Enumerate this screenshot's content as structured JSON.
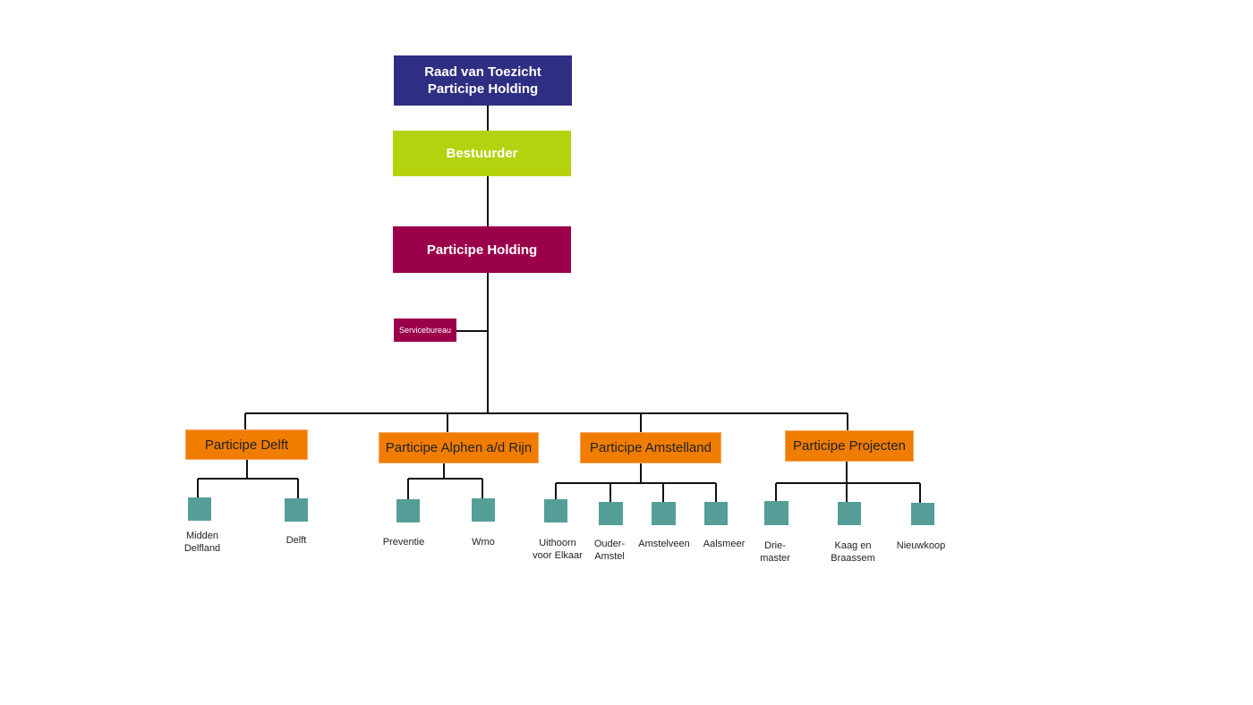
{
  "colors": {
    "board": "#2e2e82",
    "director": "#b5d20f",
    "holding": "#9b004a",
    "subsidiary": "#f07c00",
    "unit": "#559e98"
  },
  "board": {
    "line1": "Raad van Toezicht",
    "line2": "Participe Holding"
  },
  "director": "Bestuurder",
  "holding": "Participe Holding",
  "service": "Servicebureau",
  "subsidiaries": [
    {
      "name": "Participe Delft",
      "units": [
        "Midden\nDelfland",
        "Delft"
      ]
    },
    {
      "name": "Participe Alphen a/d Rijn",
      "units": [
        "Preventie",
        "Wmo"
      ]
    },
    {
      "name": "Participe Amstelland",
      "units": [
        "Uithoorn\nvoor Elkaar",
        "Ouder-\nAmstel",
        "Amstelveen",
        "Aalsmeer"
      ]
    },
    {
      "name": "Participe Projecten",
      "units": [
        "Drie-\nmaster",
        "Kaag en\nBraassem",
        "Nieuwkoop"
      ]
    }
  ]
}
